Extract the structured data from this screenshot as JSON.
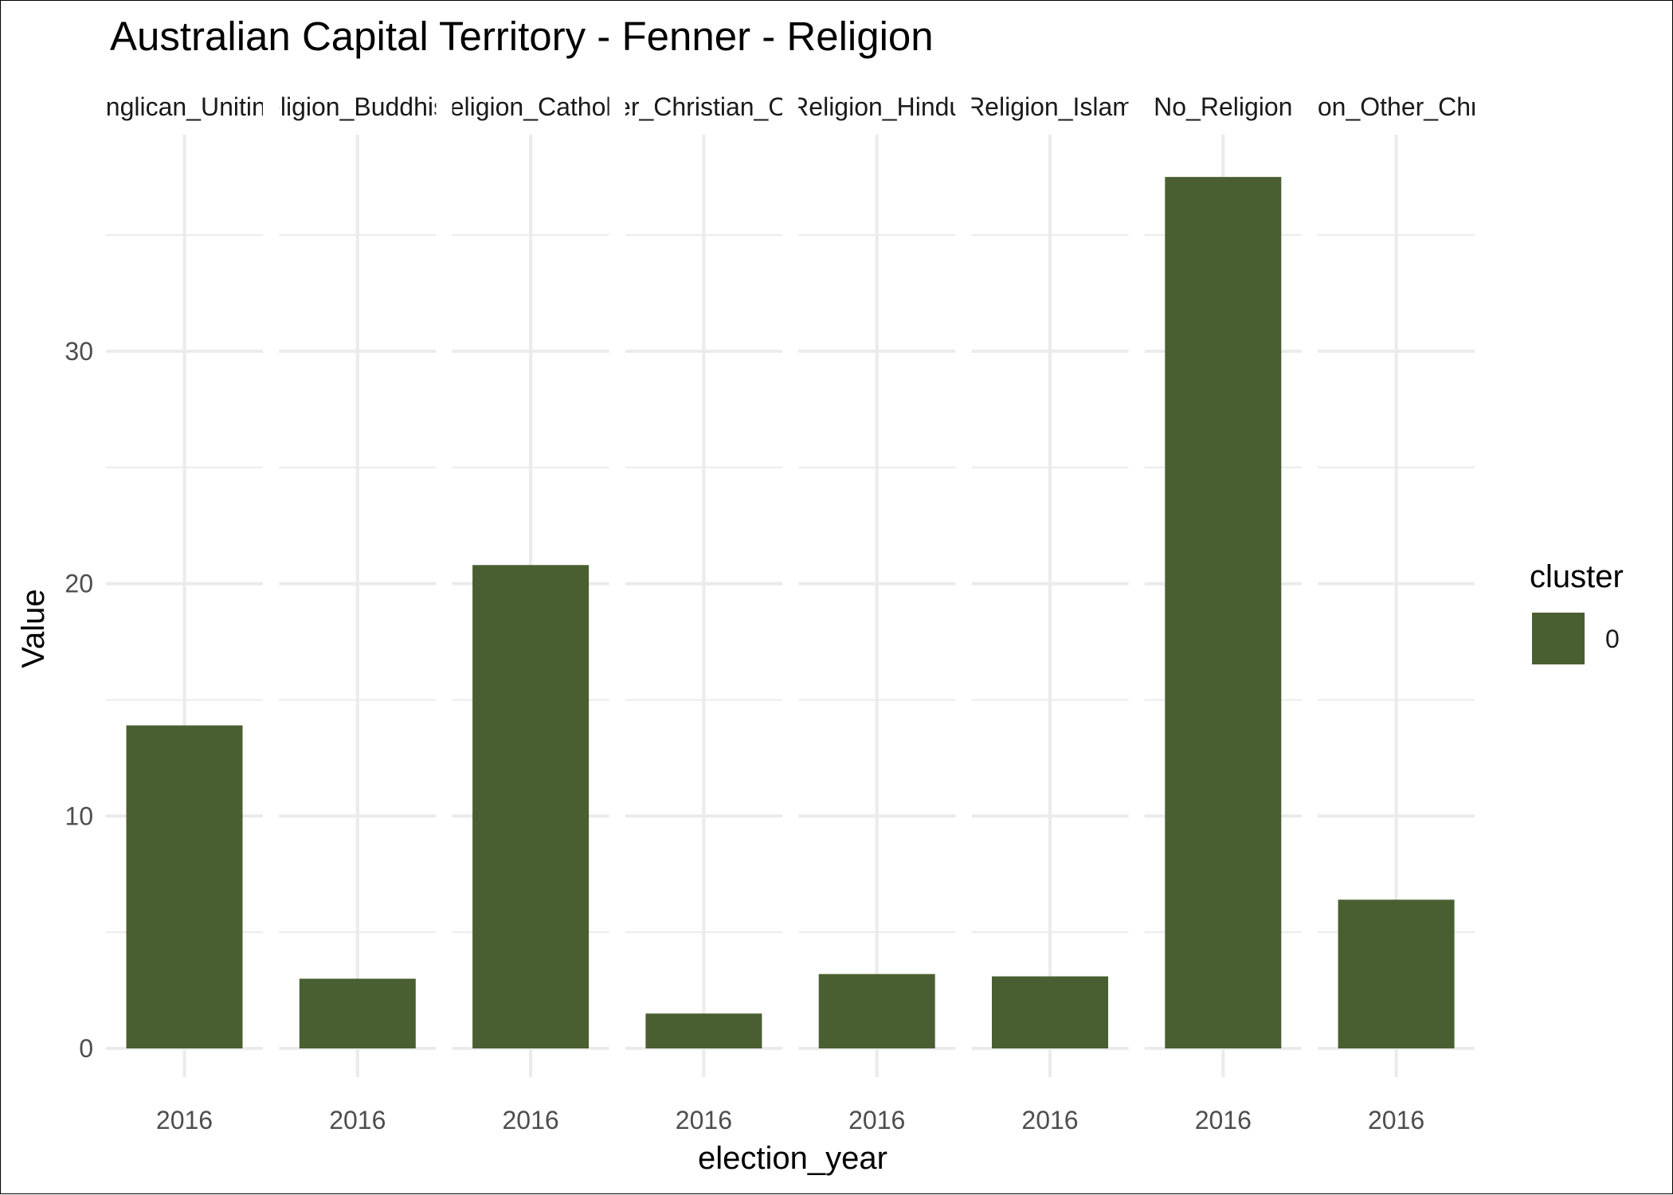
{
  "chart_data": {
    "type": "bar",
    "title": "Australian Capital Territory - Fenner - Religion",
    "xlabel": "election_year",
    "ylabel": "Value",
    "ylim": [
      0,
      39.4
    ],
    "y_ticks": [
      0,
      10,
      20,
      30
    ],
    "grid": true,
    "facet_by": "variable",
    "facets": [
      {
        "strip": "Anglican_Uniting",
        "category": "2016",
        "value": 13.9
      },
      {
        "strip": "Religion_Buddhism",
        "category": "2016",
        "value": 3.0
      },
      {
        "strip": "Religion_Catholic",
        "category": "2016",
        "value": 20.8
      },
      {
        "strip": "Other_Christian_Other",
        "category": "2016",
        "value": 1.5
      },
      {
        "strip": "Religion_Hindu",
        "category": "2016",
        "value": 3.2
      },
      {
        "strip": "Religion_Islam",
        "category": "2016",
        "value": 3.1
      },
      {
        "strip": "No_Religion",
        "category": "2016",
        "value": 37.5
      },
      {
        "strip": "Religion_Other_Christian",
        "category": "2016",
        "value": 6.4
      }
    ],
    "legend": {
      "title": "cluster",
      "position": "right",
      "items": [
        {
          "label": "0",
          "color": "#4a5f31"
        }
      ]
    },
    "bar_color": "#4a5f31"
  }
}
